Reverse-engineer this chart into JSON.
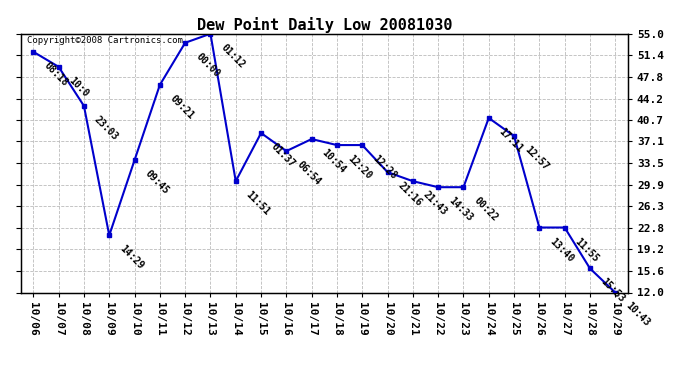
{
  "title": "Dew Point Daily Low 20081030",
  "copyright": "Copyright©2008 Cartronics.com",
  "x_labels": [
    "10/06",
    "10/07",
    "10/08",
    "10/09",
    "10/10",
    "10/11",
    "10/12",
    "10/13",
    "10/14",
    "10/15",
    "10/16",
    "10/17",
    "10/18",
    "10/19",
    "10/20",
    "10/21",
    "10/22",
    "10/23",
    "10/24",
    "10/25",
    "10/26",
    "10/27",
    "10/28",
    "10/29"
  ],
  "y_values": [
    52.0,
    49.5,
    43.0,
    21.5,
    34.0,
    46.5,
    53.5,
    55.0,
    30.5,
    38.5,
    35.5,
    37.5,
    36.5,
    36.5,
    32.0,
    30.5,
    29.5,
    29.5,
    41.0,
    38.0,
    22.8,
    22.8,
    16.0,
    12.0
  ],
  "point_labels": [
    "08:18",
    "10:0",
    "23:03",
    "14:29",
    "09:45",
    "09:21",
    "00:00",
    "01:12",
    "11:51",
    "01:37",
    "06:54",
    "10:54",
    "12:20",
    "12:28",
    "21:16",
    "21:43",
    "14:33",
    "00:22",
    "17:11",
    "12:57",
    "13:40",
    "11:55",
    "15:53",
    "10:43"
  ],
  "ylim_min": 12.0,
  "ylim_max": 55.0,
  "y_ticks": [
    12.0,
    15.6,
    19.2,
    22.8,
    26.3,
    29.9,
    33.5,
    37.1,
    40.7,
    44.2,
    47.8,
    51.4,
    55.0
  ],
  "line_color": "#0000CC",
  "marker_color": "#0000CC",
  "bg_color": "#FFFFFF",
  "grid_color": "#BBBBBB",
  "title_fontsize": 11,
  "label_fontsize": 7,
  "tick_fontsize": 8,
  "copyright_fontsize": 6.5,
  "label_rotation": -45,
  "figwidth": 6.9,
  "figheight": 3.75,
  "dpi": 100
}
